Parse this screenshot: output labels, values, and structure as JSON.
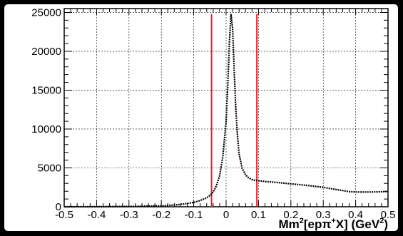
{
  "chart_data": {
    "type": "line",
    "title": "",
    "xlabel_parts": [
      "Mm",
      "2",
      "[epπ",
      "+",
      "X] (GeV",
      "2",
      ")"
    ],
    "ylabel": "",
    "xlim": [
      -0.5,
      0.5
    ],
    "ylim": [
      0,
      25500
    ],
    "grid": true,
    "x_ticks": [
      -0.5,
      -0.4,
      -0.3,
      -0.2,
      -0.1,
      0,
      0.1,
      0.2,
      0.3,
      0.4,
      0.5
    ],
    "x_tick_labels": [
      "-0.5",
      "-0.4",
      "-0.3",
      "-0.2",
      "-0.1",
      "0",
      "0.1",
      "0.2",
      "0.3",
      "0.4",
      "0.5"
    ],
    "y_ticks": [
      0,
      5000,
      10000,
      15000,
      20000,
      25000
    ],
    "y_tick_labels": [
      "0",
      "5000",
      "10000",
      "15000",
      "20000",
      "25000"
    ],
    "series": [
      {
        "color": "#000000",
        "x": [
          -0.5,
          -0.4,
          -0.3,
          -0.2,
          -0.15,
          -0.1,
          -0.08,
          -0.06,
          -0.05,
          -0.04,
          -0.03,
          -0.02,
          -0.01,
          0.0,
          0.005,
          0.01,
          0.015,
          0.02,
          0.025,
          0.03,
          0.035,
          0.04,
          0.05,
          0.06,
          0.07,
          0.08,
          0.09,
          0.1,
          0.12,
          0.15,
          0.2,
          0.25,
          0.3,
          0.35,
          0.38,
          0.4,
          0.45,
          0.5
        ],
        "y": [
          0,
          10,
          40,
          120,
          250,
          550,
          800,
          1150,
          1450,
          1900,
          2700,
          4000,
          6500,
          11000,
          15500,
          21000,
          24800,
          23000,
          17500,
          12500,
          9200,
          6800,
          4900,
          4100,
          3700,
          3500,
          3400,
          3350,
          3250,
          3150,
          2950,
          2750,
          2500,
          2150,
          1950,
          1900,
          1900,
          1950
        ]
      }
    ],
    "cut_lines": {
      "color": "#e8202a",
      "x": [
        -0.045,
        0.095
      ]
    }
  }
}
